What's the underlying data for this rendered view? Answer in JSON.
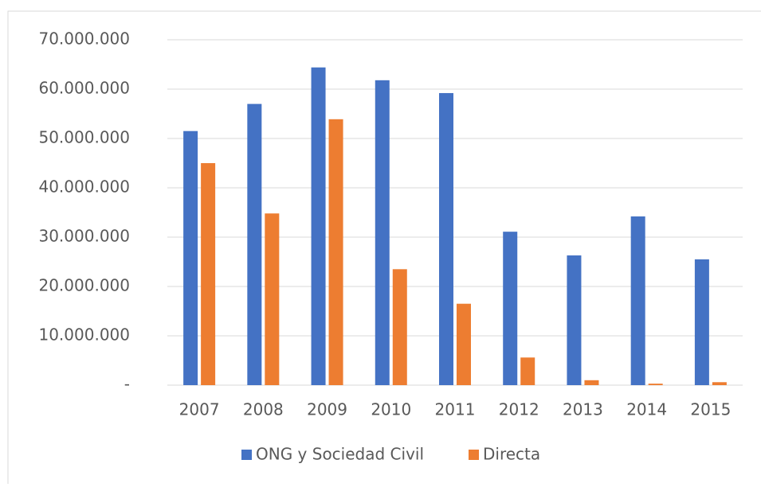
{
  "chart_data": {
    "type": "bar",
    "categories": [
      "2007",
      "2008",
      "2009",
      "2010",
      "2011",
      "2012",
      "2013",
      "2014",
      "2015"
    ],
    "series": [
      {
        "name": "ONG y Sociedad Civil",
        "color": "#4472c4",
        "values": [
          51500000,
          57000000,
          64400000,
          61800000,
          59200000,
          31100000,
          26300000,
          34200000,
          25500000
        ]
      },
      {
        "name": "Directa",
        "color": "#ed7d31",
        "values": [
          45000000,
          34800000,
          53900000,
          23500000,
          16500000,
          5600000,
          1000000,
          300000,
          600000
        ]
      }
    ],
    "ylim": [
      0,
      70000000
    ],
    "yticks": [
      {
        "value": 0,
        "label": "-"
      },
      {
        "value": 10000000,
        "label": "10.000.000"
      },
      {
        "value": 20000000,
        "label": "20.000.000"
      },
      {
        "value": 30000000,
        "label": "30.000.000"
      },
      {
        "value": 40000000,
        "label": "40.000.000"
      },
      {
        "value": 50000000,
        "label": "50.000.000"
      },
      {
        "value": 60000000,
        "label": "60.000.000"
      },
      {
        "value": 70000000,
        "label": "70.000.000"
      }
    ],
    "grid": true,
    "legend": "bottom"
  }
}
